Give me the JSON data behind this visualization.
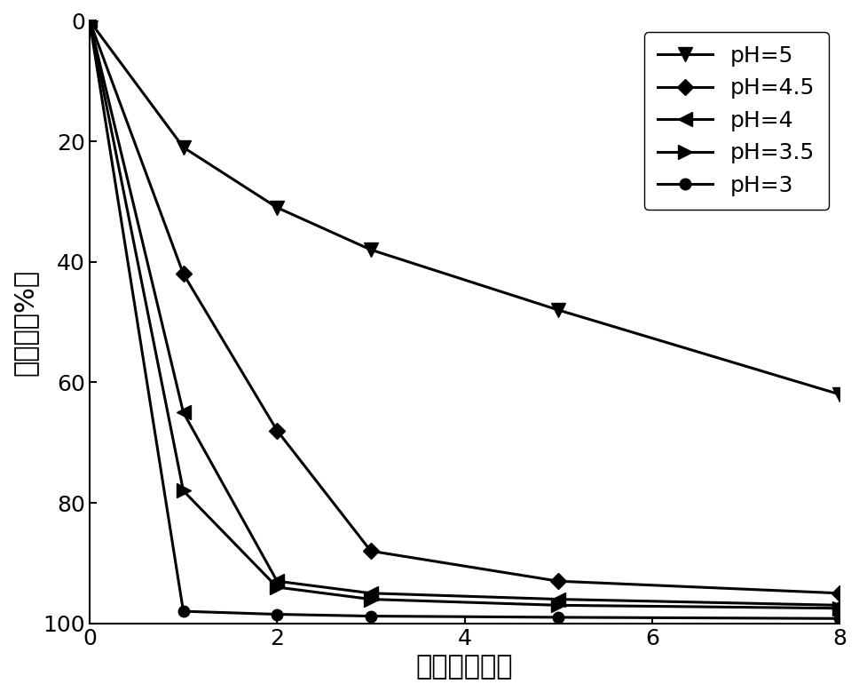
{
  "series": [
    {
      "label": "pH=5",
      "x": [
        0,
        1,
        2,
        3,
        5,
        8
      ],
      "y": [
        0,
        21,
        31,
        38,
        48,
        62
      ],
      "marker": "v",
      "color": "#000000",
      "lw": 2.2,
      "ms": 11
    },
    {
      "label": "pH=4.5",
      "x": [
        0,
        1,
        2,
        3,
        5,
        8
      ],
      "y": [
        0,
        42,
        68,
        88,
        93,
        95
      ],
      "marker": "D",
      "color": "#000000",
      "lw": 2.2,
      "ms": 9
    },
    {
      "label": "pH=4",
      "x": [
        0,
        1,
        2,
        3,
        5,
        8
      ],
      "y": [
        0,
        65,
        93,
        95,
        96,
        97
      ],
      "marker": "<",
      "color": "#000000",
      "lw": 2.2,
      "ms": 11
    },
    {
      "label": "pH=3.5",
      "x": [
        0,
        1,
        2,
        3,
        5,
        8
      ],
      "y": [
        0,
        78,
        94,
        96,
        97,
        97.5
      ],
      "marker": ">",
      "color": "#000000",
      "lw": 2.2,
      "ms": 11
    },
    {
      "label": "pH=3",
      "x": [
        0,
        1,
        2,
        3,
        5,
        8
      ],
      "y": [
        0,
        98,
        98.5,
        98.8,
        99,
        99.2
      ],
      "marker": "o",
      "color": "#000000",
      "lw": 2.2,
      "ms": 9
    }
  ],
  "xlabel": "时间（分钟）",
  "ylabel": "降解率（%）",
  "xlim": [
    0,
    8
  ],
  "ylim": [
    100,
    0
  ],
  "xticks": [
    0,
    2,
    4,
    6,
    8
  ],
  "yticks": [
    0,
    20,
    40,
    60,
    80,
    100
  ],
  "xlabel_fontsize": 22,
  "ylabel_fontsize": 22,
  "tick_fontsize": 18,
  "legend_fontsize": 18,
  "legend_loc": "upper right",
  "background_color": "#ffffff",
  "linewidth": 2.2
}
